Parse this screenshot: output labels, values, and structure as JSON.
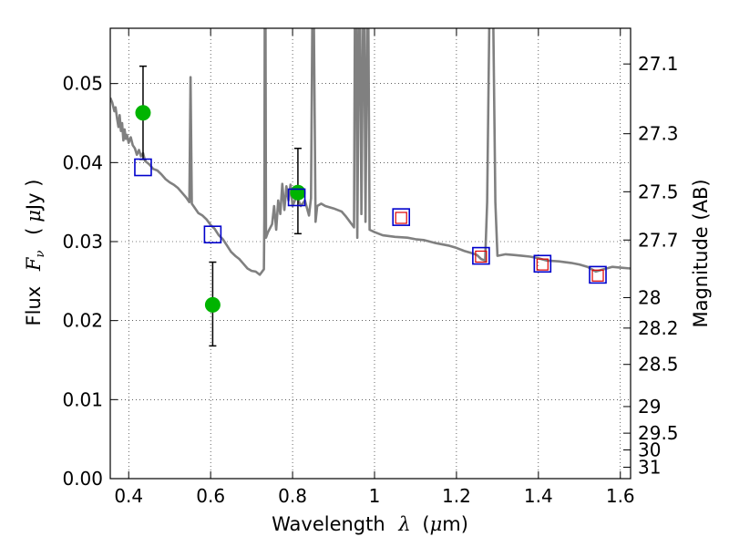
{
  "chart_data": {
    "type": "scatter",
    "title": "",
    "xlabel": {
      "prefix": "Wavelength",
      "symbol": "λ",
      "unit_open": "(",
      "unit_mu": "μ",
      "unit_rest": "m)"
    },
    "ylabel": {
      "prefix": "Flux",
      "symbol": "F",
      "subscript": "ν",
      "unit_open": "(",
      "unit_mu": "μ",
      "unit_rest": "Jy )"
    },
    "y2label": "Magnitude (AB)",
    "xlim": [
      0.355,
      1.625
    ],
    "ylim": [
      0.0,
      0.057
    ],
    "grid": true,
    "x_ticks": [
      {
        "value": 0.4,
        "label": "0.4"
      },
      {
        "value": 0.6,
        "label": "0.6"
      },
      {
        "value": 0.8,
        "label": "0.8"
      },
      {
        "value": 1.0,
        "label": "1"
      },
      {
        "value": 1.2,
        "label": "1.2"
      },
      {
        "value": 1.4,
        "label": "1.4"
      },
      {
        "value": 1.6,
        "label": "1.6"
      }
    ],
    "y_ticks": [
      {
        "value": 0.0,
        "label": "0.00"
      },
      {
        "value": 0.01,
        "label": "0.01"
      },
      {
        "value": 0.02,
        "label": "0.02"
      },
      {
        "value": 0.03,
        "label": "0.03"
      },
      {
        "value": 0.04,
        "label": "0.04"
      },
      {
        "value": 0.05,
        "label": "0.05"
      }
    ],
    "y2_ticks": [
      {
        "label": "27.1"
      },
      {
        "label": "27.3"
      },
      {
        "label": "27.5"
      },
      {
        "label": "27.7"
      },
      {
        "label": "28"
      },
      {
        "label": "28.2"
      },
      {
        "label": "28.5"
      },
      {
        "label": "29"
      },
      {
        "label": "29.5"
      },
      {
        "label": "30"
      },
      {
        "label": "31"
      }
    ],
    "series": [
      {
        "kind": "line",
        "color": "#808080",
        "points": [
          [
            0.355,
            0.0482
          ],
          [
            0.36,
            0.0476
          ],
          [
            0.365,
            0.0465
          ],
          [
            0.368,
            0.047
          ],
          [
            0.372,
            0.0455
          ],
          [
            0.375,
            0.0445
          ],
          [
            0.378,
            0.046
          ],
          [
            0.381,
            0.044
          ],
          [
            0.384,
            0.045
          ],
          [
            0.387,
            0.0428
          ],
          [
            0.39,
            0.0442
          ],
          [
            0.393,
            0.043
          ],
          [
            0.396,
            0.0435
          ],
          [
            0.4,
            0.0425
          ],
          [
            0.405,
            0.0432
          ],
          [
            0.41,
            0.0422
          ],
          [
            0.415,
            0.0418
          ],
          [
            0.42,
            0.041
          ],
          [
            0.425,
            0.0416
          ],
          [
            0.43,
            0.0408
          ],
          [
            0.435,
            0.0412
          ],
          [
            0.44,
            0.0402
          ],
          [
            0.45,
            0.0398
          ],
          [
            0.46,
            0.0392
          ],
          [
            0.47,
            0.039
          ],
          [
            0.48,
            0.0385
          ],
          [
            0.49,
            0.0379
          ],
          [
            0.5,
            0.0375
          ],
          [
            0.51,
            0.0372
          ],
          [
            0.52,
            0.0368
          ],
          [
            0.53,
            0.0362
          ],
          [
            0.54,
            0.0356
          ],
          [
            0.548,
            0.035
          ],
          [
            0.551,
            0.0508
          ],
          [
            0.554,
            0.0348
          ],
          [
            0.57,
            0.0336
          ],
          [
            0.58,
            0.0333
          ],
          [
            0.59,
            0.0328
          ],
          [
            0.6,
            0.0321
          ],
          [
            0.61,
            0.0316
          ],
          [
            0.62,
            0.0308
          ],
          [
            0.63,
            0.0303
          ],
          [
            0.64,
            0.0295
          ],
          [
            0.65,
            0.0287
          ],
          [
            0.66,
            0.0282
          ],
          [
            0.67,
            0.0278
          ],
          [
            0.68,
            0.0272
          ],
          [
            0.69,
            0.0266
          ],
          [
            0.7,
            0.0263
          ],
          [
            0.71,
            0.0262
          ],
          [
            0.72,
            0.0258
          ],
          [
            0.73,
            0.0265
          ],
          [
            0.731,
            0.033
          ],
          [
            0.732,
            0.0571
          ],
          [
            0.734,
            0.0571
          ],
          [
            0.735,
            0.0305
          ],
          [
            0.74,
            0.0312
          ],
          [
            0.75,
            0.0322
          ],
          [
            0.755,
            0.0345
          ],
          [
            0.76,
            0.0315
          ],
          [
            0.765,
            0.0352
          ],
          [
            0.77,
            0.0335
          ],
          [
            0.775,
            0.0373
          ],
          [
            0.78,
            0.034
          ],
          [
            0.785,
            0.037
          ],
          [
            0.79,
            0.0352
          ],
          [
            0.795,
            0.0372
          ],
          [
            0.8,
            0.0345
          ],
          [
            0.81,
            0.0358
          ],
          [
            0.82,
            0.0345
          ],
          [
            0.83,
            0.0352
          ],
          [
            0.84,
            0.0333
          ],
          [
            0.845,
            0.0355
          ],
          [
            0.848,
            0.0571
          ],
          [
            0.852,
            0.0571
          ],
          [
            0.856,
            0.0325
          ],
          [
            0.86,
            0.0345
          ],
          [
            0.87,
            0.0348
          ],
          [
            0.88,
            0.0345
          ],
          [
            0.9,
            0.0342
          ],
          [
            0.92,
            0.0338
          ],
          [
            0.93,
            0.0332
          ],
          [
            0.94,
            0.0325
          ],
          [
            0.95,
            0.0318
          ],
          [
            0.952,
            0.0571
          ],
          [
            0.956,
            0.0571
          ],
          [
            0.958,
            0.0305
          ],
          [
            0.962,
            0.0571
          ],
          [
            0.965,
            0.0571
          ],
          [
            0.968,
            0.0335
          ],
          [
            0.972,
            0.0571
          ],
          [
            0.975,
            0.0571
          ],
          [
            0.978,
            0.0325
          ],
          [
            0.982,
            0.0571
          ],
          [
            0.985,
            0.0571
          ],
          [
            0.988,
            0.0315
          ],
          [
            1.0,
            0.0312
          ],
          [
            1.02,
            0.0308
          ],
          [
            1.05,
            0.0306
          ],
          [
            1.08,
            0.0305
          ],
          [
            1.1,
            0.0303
          ],
          [
            1.12,
            0.0302
          ],
          [
            1.15,
            0.0298
          ],
          [
            1.18,
            0.0295
          ],
          [
            1.2,
            0.0292
          ],
          [
            1.22,
            0.0288
          ],
          [
            1.24,
            0.0285
          ],
          [
            1.25,
            0.0283
          ],
          [
            1.26,
            0.0278
          ],
          [
            1.27,
            0.0276
          ],
          [
            1.275,
            0.035
          ],
          [
            1.28,
            0.0571
          ],
          [
            1.29,
            0.0571
          ],
          [
            1.295,
            0.035
          ],
          [
            1.3,
            0.0282
          ],
          [
            1.32,
            0.0284
          ],
          [
            1.34,
            0.0283
          ],
          [
            1.36,
            0.0282
          ],
          [
            1.38,
            0.0281
          ],
          [
            1.4,
            0.0279
          ],
          [
            1.42,
            0.0276
          ],
          [
            1.45,
            0.0275
          ],
          [
            1.48,
            0.0273
          ],
          [
            1.5,
            0.0271
          ],
          [
            1.52,
            0.0268
          ],
          [
            1.54,
            0.0262
          ],
          [
            1.56,
            0.0265
          ],
          [
            1.58,
            0.0268
          ],
          [
            1.6,
            0.0267
          ],
          [
            1.625,
            0.0266
          ]
        ]
      },
      {
        "kind": "errorbar",
        "marker": "circle",
        "color": "#00b400",
        "points": [
          {
            "x": 0.435,
            "y": 0.0463,
            "lo": 0.0404,
            "hi": 0.0522
          },
          {
            "x": 0.605,
            "y": 0.022,
            "lo": 0.0168,
            "hi": 0.0274
          },
          {
            "x": 0.813,
            "y": 0.0362,
            "lo": 0.031,
            "hi": 0.0418
          }
        ]
      },
      {
        "kind": "marker",
        "marker": "open-square",
        "color": "#0000cc",
        "points": [
          [
            0.435,
            0.0394
          ],
          [
            0.605,
            0.0309
          ],
          [
            0.81,
            0.0356
          ],
          [
            1.065,
            0.0331
          ],
          [
            1.26,
            0.0282
          ],
          [
            1.41,
            0.0272
          ],
          [
            1.545,
            0.0258
          ]
        ]
      },
      {
        "kind": "marker",
        "marker": "open-square-small",
        "color": "#dd0000",
        "points": [
          [
            1.065,
            0.033
          ],
          [
            1.26,
            0.0281
          ],
          [
            1.41,
            0.0271
          ],
          [
            1.545,
            0.0257
          ]
        ]
      }
    ]
  }
}
